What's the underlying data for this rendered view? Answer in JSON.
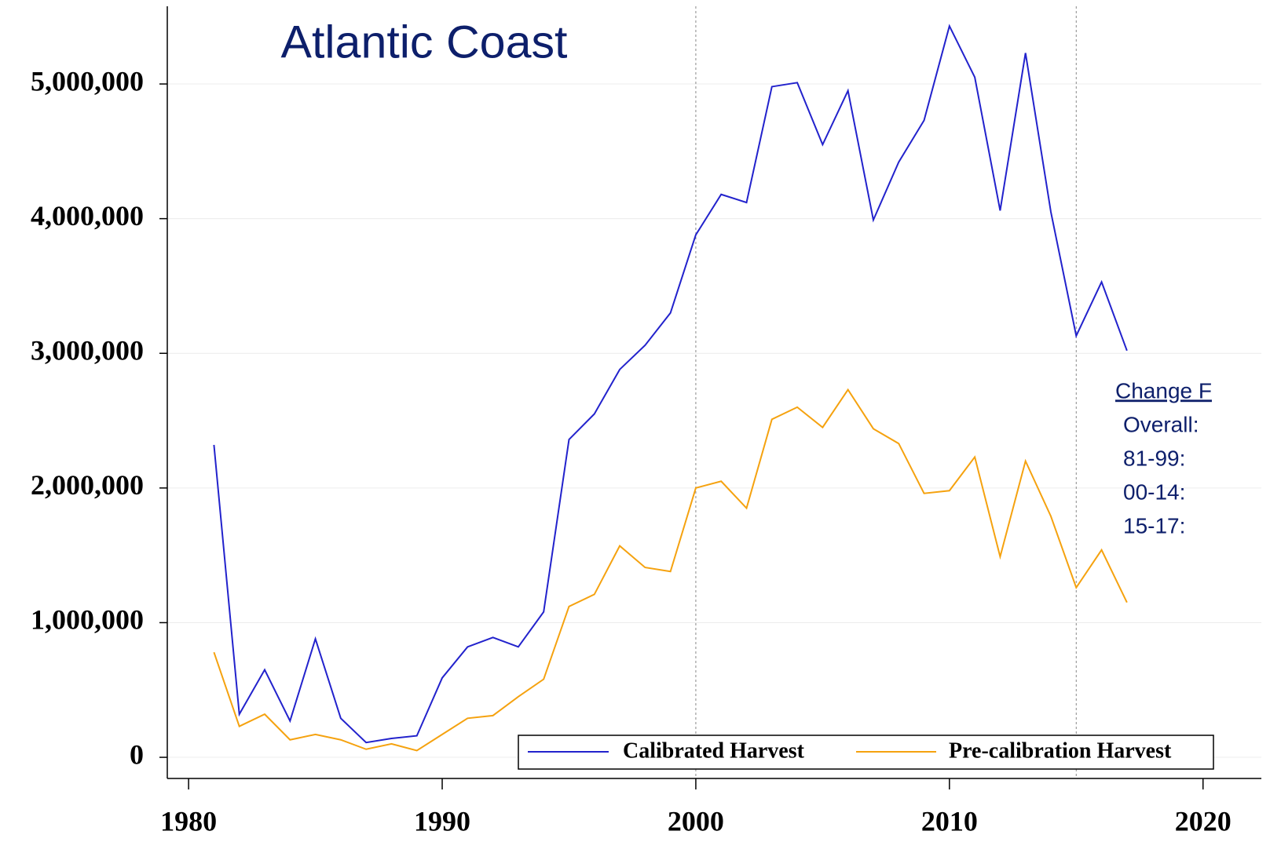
{
  "chart_data": {
    "type": "line",
    "title": "Atlantic Coast",
    "x": [
      1981,
      1982,
      1983,
      1984,
      1985,
      1986,
      1987,
      1988,
      1989,
      1990,
      1991,
      1992,
      1993,
      1994,
      1995,
      1996,
      1997,
      1998,
      1999,
      2000,
      2001,
      2002,
      2003,
      2004,
      2005,
      2006,
      2007,
      2008,
      2009,
      2010,
      2011,
      2012,
      2013,
      2014,
      2015,
      2016,
      2017
    ],
    "series": [
      {
        "name": "Calibrated Harvest",
        "color": "#2222cc",
        "values": [
          2320000,
          320000,
          650000,
          270000,
          880000,
          290000,
          110000,
          140000,
          160000,
          590000,
          820000,
          890000,
          820000,
          1080000,
          2360000,
          2550000,
          2880000,
          3060000,
          3300000,
          3880000,
          4180000,
          4120000,
          4980000,
          5010000,
          4550000,
          4950000,
          3990000,
          4420000,
          4730000,
          5430000,
          5050000,
          4060000,
          5230000,
          4050000,
          3130000,
          3530000,
          3020000
        ]
      },
      {
        "name": "Pre-calibration Harvest",
        "color": "#f5a20f",
        "values": [
          780000,
          230000,
          320000,
          130000,
          170000,
          130000,
          60000,
          100000,
          50000,
          170000,
          290000,
          310000,
          450000,
          580000,
          1120000,
          1210000,
          1570000,
          1410000,
          1380000,
          2000000,
          2050000,
          1850000,
          2510000,
          2600000,
          2450000,
          2730000,
          2440000,
          2330000,
          1960000,
          1980000,
          2230000,
          1490000,
          2200000,
          1790000,
          1260000,
          1540000,
          1150000
        ]
      }
    ],
    "xlim": [
      1979.16,
      2022.3
    ],
    "xticks": [
      1980,
      1990,
      2000,
      2010,
      2020
    ],
    "ylim": [
      -157000,
      5577000
    ],
    "yticks": [
      0,
      {
        "value": 1000000,
        "label": "1,000,000"
      },
      {
        "value": 2000000,
        "label": "2,000,000"
      },
      {
        "value": 3000000,
        "label": "3,000,000"
      },
      {
        "value": 4000000,
        "label": "4,000,000"
      },
      {
        "value": 5000000,
        "label": "5,000,000"
      }
    ],
    "grid": true,
    "vlines": [
      2000,
      2015
    ],
    "legend": "lower right",
    "annotations": [
      "Change F",
      "Overall:",
      "81-99:",
      "00-14:",
      "15-17:"
    ]
  }
}
